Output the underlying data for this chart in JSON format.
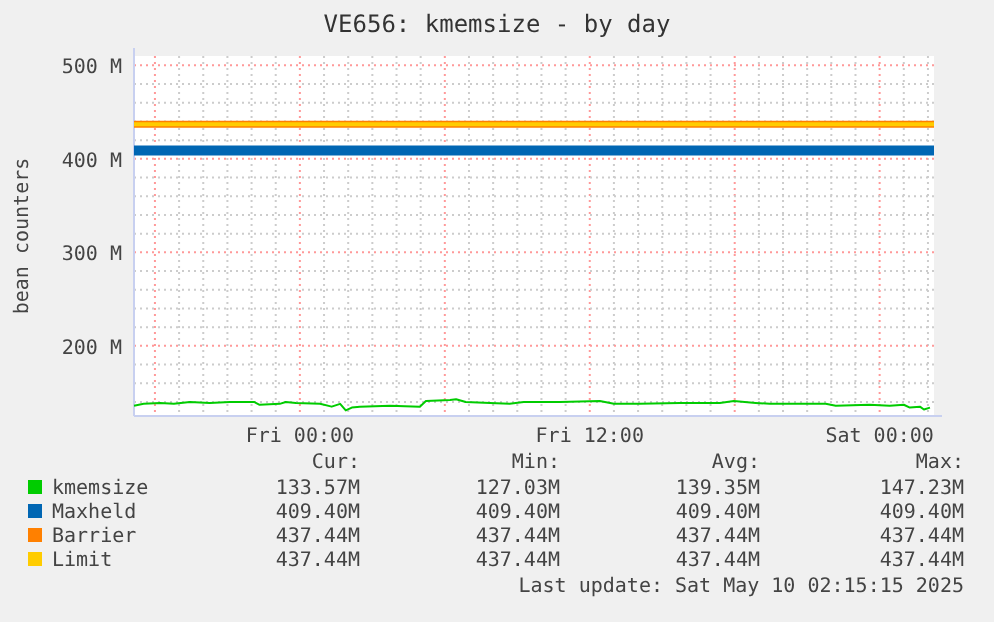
{
  "chart_data": {
    "type": "line",
    "title": "VE656: kmemsize - by day",
    "ylabel": "bean counters",
    "xlim": [
      "2025-05-08T17:08",
      "2025-05-10T02:15"
    ],
    "ylim": [
      125,
      510
    ],
    "xticks": [
      {
        "value": "2025-05-08T18:00",
        "label": null
      },
      {
        "value": "2025-05-08T19:00",
        "label": null
      },
      {
        "value": "2025-05-08T20:00",
        "label": null
      },
      {
        "value": "2025-05-08T21:00",
        "label": null
      },
      {
        "value": "2025-05-08T22:00",
        "label": null
      },
      {
        "value": "2025-05-08T23:00",
        "label": null
      },
      {
        "value": "2025-05-09T00:00",
        "label": "Fri 00:00"
      },
      {
        "value": "2025-05-09T01:00",
        "label": null
      },
      {
        "value": "2025-05-09T02:00",
        "label": null
      },
      {
        "value": "2025-05-09T03:00",
        "label": null
      },
      {
        "value": "2025-05-09T04:00",
        "label": null
      },
      {
        "value": "2025-05-09T05:00",
        "label": null
      },
      {
        "value": "2025-05-09T06:00",
        "label": null
      },
      {
        "value": "2025-05-09T07:00",
        "label": null
      },
      {
        "value": "2025-05-09T08:00",
        "label": null
      },
      {
        "value": "2025-05-09T09:00",
        "label": null
      },
      {
        "value": "2025-05-09T10:00",
        "label": null
      },
      {
        "value": "2025-05-09T11:00",
        "label": null
      },
      {
        "value": "2025-05-09T12:00",
        "label": "Fri 12:00"
      },
      {
        "value": "2025-05-09T13:00",
        "label": null
      },
      {
        "value": "2025-05-09T14:00",
        "label": null
      },
      {
        "value": "2025-05-09T15:00",
        "label": null
      },
      {
        "value": "2025-05-09T16:00",
        "label": null
      },
      {
        "value": "2025-05-09T17:00",
        "label": null
      },
      {
        "value": "2025-05-09T18:00",
        "label": null
      },
      {
        "value": "2025-05-09T19:00",
        "label": null
      },
      {
        "value": "2025-05-09T20:00",
        "label": null
      },
      {
        "value": "2025-05-09T21:00",
        "label": null
      },
      {
        "value": "2025-05-09T22:00",
        "label": null
      },
      {
        "value": "2025-05-09T23:00",
        "label": null
      },
      {
        "value": "2025-05-10T00:00",
        "label": "Sat 00:00"
      },
      {
        "value": "2025-05-10T01:00",
        "label": null
      },
      {
        "value": "2025-05-10T02:00",
        "label": null
      }
    ],
    "yticks": [
      {
        "value": 140,
        "label": null
      },
      {
        "value": 160,
        "label": null
      },
      {
        "value": 180,
        "label": null
      },
      {
        "value": 200,
        "label": "200 M"
      },
      {
        "value": 220,
        "label": null
      },
      {
        "value": 240,
        "label": null
      },
      {
        "value": 260,
        "label": null
      },
      {
        "value": 280,
        "label": null
      },
      {
        "value": 300,
        "label": "300 M"
      },
      {
        "value": 320,
        "label": null
      },
      {
        "value": 340,
        "label": null
      },
      {
        "value": 360,
        "label": null
      },
      {
        "value": 380,
        "label": null
      },
      {
        "value": 400,
        "label": "400 M"
      },
      {
        "value": 420,
        "label": null
      },
      {
        "value": 440,
        "label": null
      },
      {
        "value": 460,
        "label": null
      },
      {
        "value": 480,
        "label": null
      },
      {
        "value": 500,
        "label": "500 M"
      }
    ],
    "grid": true,
    "legend": "bottom",
    "line_style": "solid",
    "marker": "none",
    "series": [
      {
        "name": "kmemsize",
        "color": "#00cc00",
        "x": [
          "2025-05-08T17:08",
          "2025-05-08T17:32",
          "2025-05-08T18:13",
          "2025-05-08T18:47",
          "2025-05-08T19:27",
          "2025-05-08T20:16",
          "2025-05-08T21:06",
          "2025-05-08T22:06",
          "2025-05-08T22:20",
          "2025-05-08T23:10",
          "2025-05-08T23:25",
          "2025-05-08T23:50",
          "2025-05-09T00:50",
          "2025-05-09T01:19",
          "2025-05-09T01:40",
          "2025-05-09T01:54",
          "2025-05-09T02:09",
          "2025-05-09T02:29",
          "2025-05-09T03:44",
          "2025-05-09T04:58",
          "2025-05-09T05:13",
          "2025-05-09T06:13",
          "2025-05-09T06:28",
          "2025-05-09T06:52",
          "2025-05-09T07:52",
          "2025-05-09T08:41",
          "2025-05-09T09:16",
          "2025-05-09T10:46",
          "2025-05-09T12:25",
          "2025-05-09T13:00",
          "2025-05-09T14:04",
          "2025-05-09T15:44",
          "2025-05-09T17:23",
          "2025-05-09T17:58",
          "2025-05-09T18:52",
          "2025-05-09T19:27",
          "2025-05-09T20:42",
          "2025-05-09T21:46",
          "2025-05-09T22:11",
          "2025-05-09T23:35",
          "2025-05-10T00:25",
          "2025-05-10T01:00",
          "2025-05-10T01:15",
          "2025-05-10T01:40",
          "2025-05-10T01:50",
          "2025-05-10T02:05"
        ],
        "values": [
          136,
          138,
          139,
          138,
          140,
          139,
          140,
          140,
          137,
          138,
          140,
          139,
          138,
          135,
          138,
          131,
          134,
          135,
          136,
          135,
          141,
          142,
          143,
          140,
          139,
          138,
          140,
          140,
          141,
          138,
          138,
          139,
          139,
          141,
          139,
          138,
          138,
          138,
          136,
          137,
          136,
          137,
          134,
          135,
          132,
          134
        ]
      },
      {
        "name": "Maxheld",
        "color": "#0066b3",
        "x": [
          "2025-05-08T17:08",
          "2025-05-10T02:15"
        ],
        "values": [
          409,
          409
        ]
      },
      {
        "name": "Barrier",
        "color": "#ff8000",
        "x": [
          "2025-05-08T17:08",
          "2025-05-10T02:15"
        ],
        "values": [
          437,
          437
        ]
      },
      {
        "name": "Limit",
        "color": "#ffcc00",
        "x": [
          "2025-05-08T17:08",
          "2025-05-10T02:15"
        ],
        "values": [
          437,
          437
        ]
      }
    ],
    "annotations": [
      "Cur:",
      "Min:",
      "Avg:",
      "Max:",
      "133.57M",
      "127.03M",
      "139.35M",
      "147.23M",
      "409.40M",
      "409.40M",
      "409.40M",
      "409.40M",
      "437.44M",
      "437.44M",
      "437.44M",
      "437.44M",
      "437.44M",
      "437.44M",
      "437.44M",
      "437.44M",
      "Last update: Sat May 10 02:15:15 2025"
    ]
  }
}
